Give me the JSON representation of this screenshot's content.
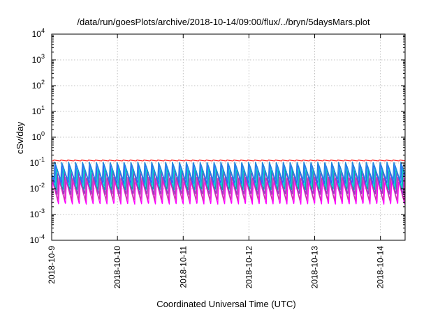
{
  "chart_data": {
    "type": "line",
    "title": "/data/run/goesPlots/archive/2018-10-14/09:00/flux/../bryn/5daysMars.plot",
    "xlabel": "Coordinated Universal Time (UTC)",
    "ylabel": "cSv/day",
    "yscale": "log",
    "ylim": [
      0.0001,
      10000
    ],
    "y_ticks": [
      {
        "base": "10",
        "exp": "-4"
      },
      {
        "base": "10",
        "exp": "-3"
      },
      {
        "base": "10",
        "exp": "-2"
      },
      {
        "base": "10",
        "exp": "-1"
      },
      {
        "base": "10",
        "exp": "0"
      },
      {
        "base": "10",
        "exp": "1"
      },
      {
        "base": "10",
        "exp": "2"
      },
      {
        "base": "10",
        "exp": "3"
      },
      {
        "base": "10",
        "exp": "4"
      }
    ],
    "xlim": [
      "2018-10-09T00:00",
      "2018-10-14T09:00"
    ],
    "x_ticks": [
      "2018-10-9",
      "2018-10-10",
      "2018-10-11",
      "2018-10-12",
      "2018-10-13",
      "2018-10-14"
    ],
    "grid": true,
    "legend": "none",
    "pattern": {
      "description": "sawtooth: sharp rise then slow decay, repeating",
      "peaks_per_day": 9.5
    },
    "series": [
      {
        "color": "#ff00ff",
        "peak": 0.02,
        "trough": 0.0025
      },
      {
        "color": "#cc33aa",
        "peak": 0.028,
        "trough": 0.0035
      },
      {
        "color": "#9933cc",
        "peak": 0.045,
        "trough": 0.006
      },
      {
        "color": "#00aaaa",
        "peak": 0.06,
        "trough": 0.009
      },
      {
        "color": "#00ccdd",
        "peak": 0.075,
        "trough": 0.012
      },
      {
        "color": "#3355ff",
        "peak": 0.09,
        "trough": 0.016
      },
      {
        "color": "#2288dd",
        "peak": 0.11,
        "trough": 0.022
      },
      {
        "color": "#ff3333",
        "peak": 0.13,
        "trough": 0.12
      }
    ]
  }
}
